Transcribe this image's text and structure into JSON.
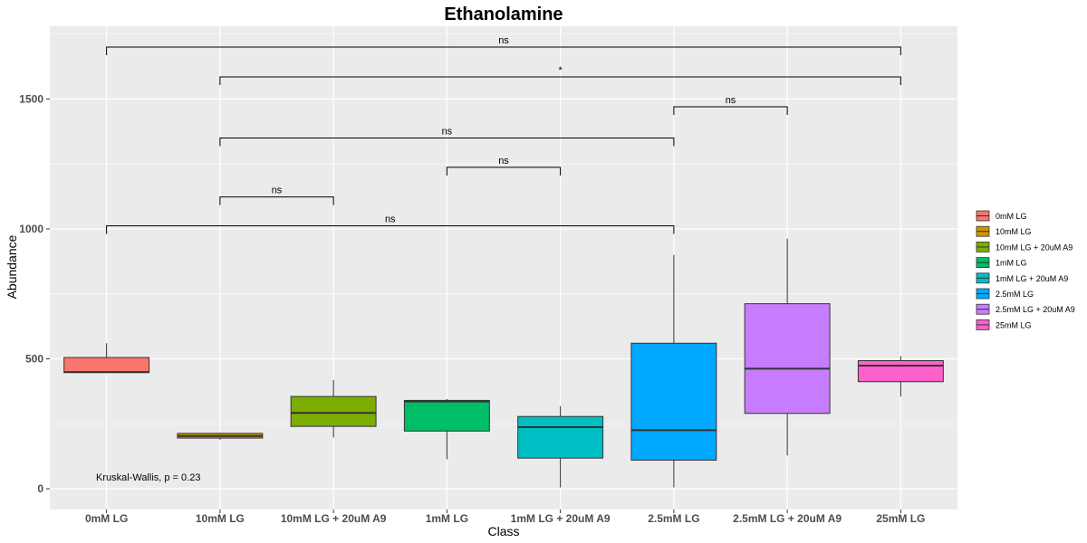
{
  "chart_data": {
    "type": "boxplot",
    "title": "Ethanolamine",
    "xlabel": "Class",
    "ylabel": "Abundance",
    "ylim": [
      -80,
      1780
    ],
    "y_ticks": [
      0,
      500,
      1000,
      1500
    ],
    "y_tick_labels": [
      "0",
      "500",
      "1000",
      "1500"
    ],
    "grid": true,
    "legend_position": "right",
    "categories": [
      "0mM LG",
      "10mM LG",
      "10mM LG + 20uM A9",
      "1mM LG",
      "1mM LG + 20uM A9",
      "2.5mM LG",
      "2.5mM LG + 20uM A9",
      "25mM LG"
    ],
    "colors": [
      "#F8766D",
      "#CD9600",
      "#7CAE00",
      "#00BE67",
      "#00BFC4",
      "#00A9FF",
      "#C77CFF",
      "#FF61CC"
    ],
    "boxes": [
      {
        "min": 445,
        "q1": 447,
        "median": 449,
        "q3": 505,
        "max": 560
      },
      {
        "min": 188,
        "q1": 195,
        "median": 203,
        "q3": 213,
        "max": 215
      },
      {
        "min": 197,
        "q1": 240,
        "median": 292,
        "q3": 355,
        "max": 418
      },
      {
        "min": 113,
        "q1": 222,
        "median": 336,
        "q3": 340,
        "max": 345
      },
      {
        "min": 5,
        "q1": 118,
        "median": 237,
        "q3": 278,
        "max": 318
      },
      {
        "min": 5,
        "q1": 110,
        "median": 225,
        "q3": 560,
        "max": 900
      },
      {
        "min": 128,
        "q1": 290,
        "median": 462,
        "q3": 712,
        "max": 963
      },
      {
        "min": 355,
        "q1": 412,
        "median": 474,
        "q3": 493,
        "max": 510
      }
    ],
    "comparisons": [
      {
        "from": "0mM LG",
        "to": "25mM LG",
        "y": 1700,
        "label": "ns"
      },
      {
        "from": "10mM LG",
        "to": "25mM LG",
        "y": 1585,
        "label": "*"
      },
      {
        "from": "2.5mM LG",
        "to": "2.5mM LG + 20uM A9",
        "y": 1470,
        "label": "ns"
      },
      {
        "from": "10mM LG",
        "to": "2.5mM LG",
        "y": 1350,
        "label": "ns"
      },
      {
        "from": "1mM LG",
        "to": "1mM LG + 20uM A9",
        "y": 1237,
        "label": "ns"
      },
      {
        "from": "10mM LG",
        "to": "10mM LG + 20uM A9",
        "y": 1123,
        "label": "ns"
      },
      {
        "from": "0mM LG",
        "to": "2.5mM LG",
        "y": 1012,
        "label": "ns"
      }
    ],
    "annotations": [
      {
        "text": "Kruskal-Wallis, p = 0.23"
      }
    ]
  }
}
